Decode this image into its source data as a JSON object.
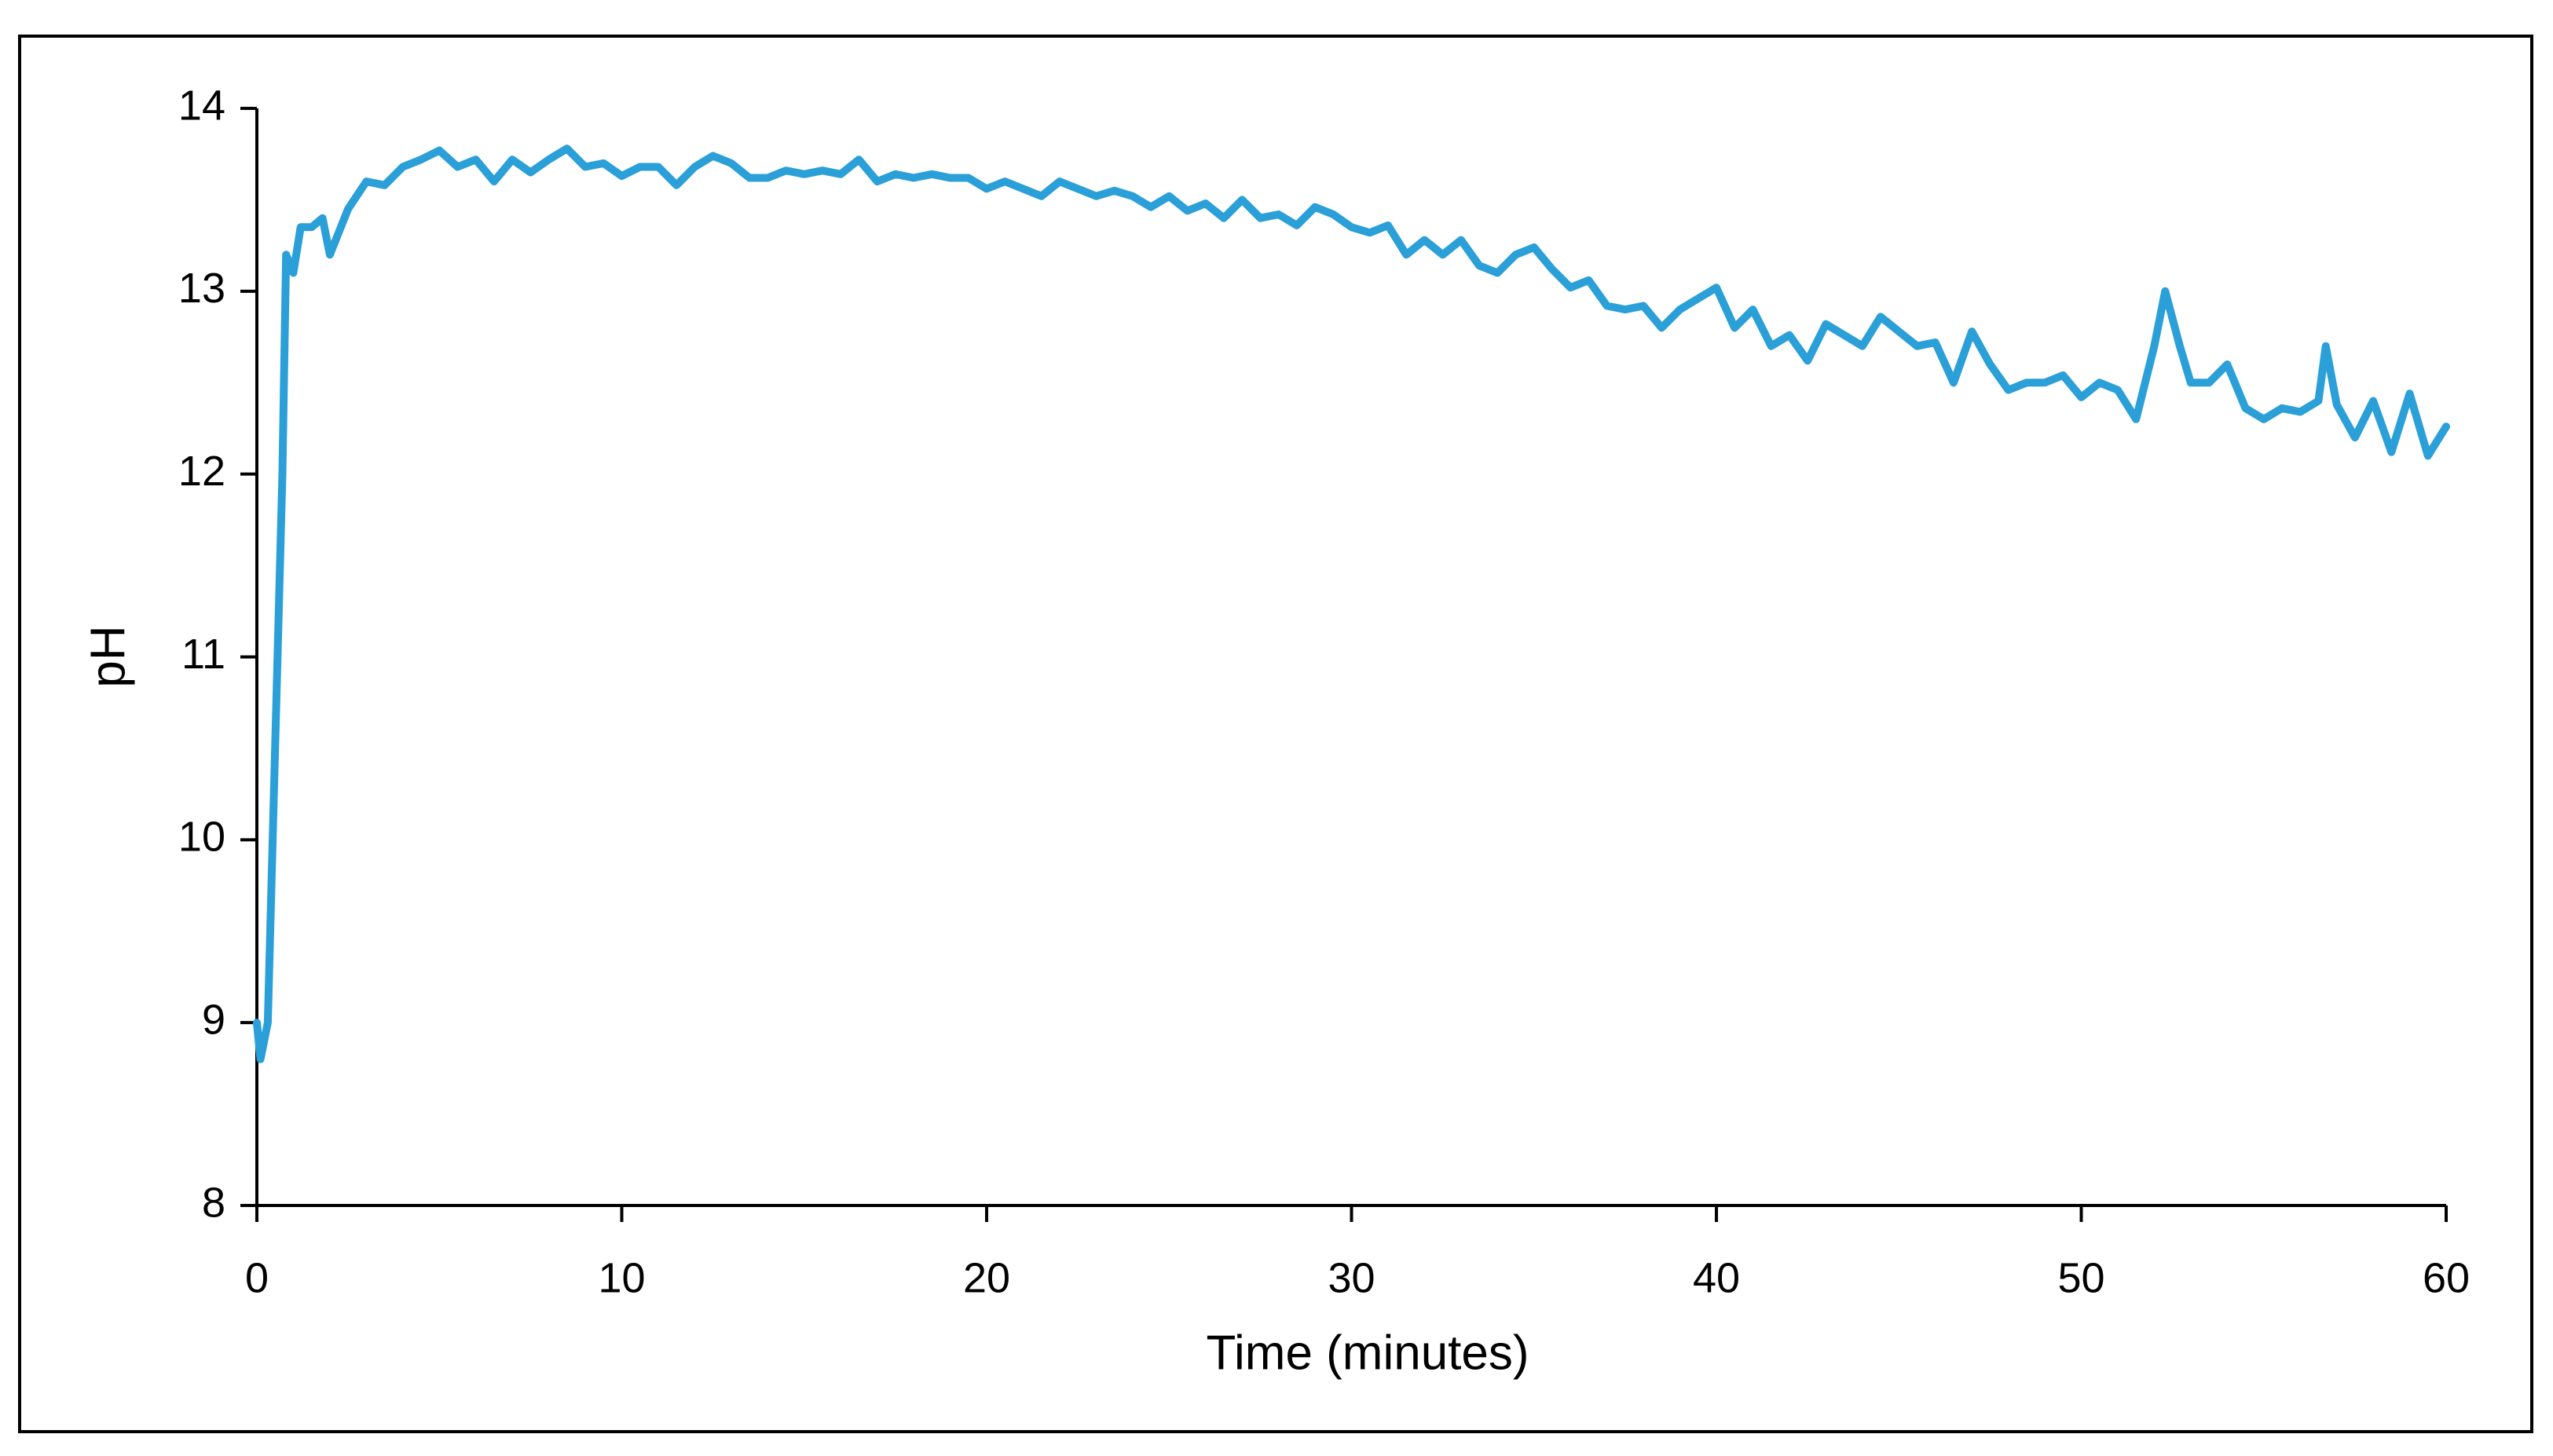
{
  "chart_data": {
    "type": "line",
    "xlabel": "Time (minutes)",
    "ylabel": "pH",
    "color": "#2a9fd8",
    "xlim": [
      0,
      60
    ],
    "xticks": [
      0,
      10,
      20,
      30,
      40,
      50,
      60
    ],
    "ylim": [
      8,
      14
    ],
    "yticks": [
      8,
      9,
      10,
      11,
      12,
      13,
      14
    ],
    "x": [
      0,
      0.1,
      0.3,
      0.5,
      0.7,
      0.8,
      1.0,
      1.2,
      1.5,
      1.8,
      2.0,
      2.5,
      3.0,
      3.5,
      4,
      4.5,
      5,
      5.5,
      6,
      6.5,
      7,
      7.5,
      8,
      8.5,
      9,
      9.5,
      10,
      10.5,
      11,
      11.5,
      12,
      12.5,
      13,
      13.5,
      14,
      14.5,
      15,
      15.5,
      16,
      16.5,
      17,
      17.5,
      18,
      18.5,
      19,
      19.5,
      20,
      20.5,
      21,
      21.5,
      22,
      22.5,
      23,
      23.5,
      24,
      24.5,
      25,
      25.5,
      26,
      26.5,
      27,
      27.5,
      28,
      28.5,
      29,
      29.5,
      30,
      30.5,
      31,
      31.5,
      32,
      32.5,
      33,
      33.5,
      34,
      34.5,
      35,
      35.5,
      36,
      36.5,
      37,
      37.5,
      38,
      38.5,
      39,
      39.5,
      40,
      40.5,
      41,
      41.5,
      42,
      42.5,
      43,
      43.5,
      44,
      44.5,
      45,
      45.5,
      46,
      46.5,
      47,
      47.5,
      48,
      48.5,
      49,
      49.5,
      50,
      50.5,
      51,
      51.5,
      52,
      52.3,
      52.7,
      53,
      53.5,
      54,
      54.5,
      55,
      55.5,
      56,
      56.5,
      56.7,
      57,
      57.5,
      58,
      58.5,
      59,
      59.5,
      60
    ],
    "values": [
      9.0,
      8.8,
      9.0,
      10.5,
      12.0,
      13.2,
      13.1,
      13.35,
      13.35,
      13.4,
      13.2,
      13.45,
      13.6,
      13.58,
      13.68,
      13.72,
      13.77,
      13.68,
      13.72,
      13.6,
      13.72,
      13.65,
      13.72,
      13.78,
      13.68,
      13.7,
      13.63,
      13.68,
      13.68,
      13.58,
      13.68,
      13.74,
      13.7,
      13.62,
      13.62,
      13.66,
      13.64,
      13.66,
      13.64,
      13.72,
      13.6,
      13.64,
      13.62,
      13.64,
      13.62,
      13.62,
      13.56,
      13.6,
      13.56,
      13.52,
      13.6,
      13.56,
      13.52,
      13.55,
      13.52,
      13.46,
      13.52,
      13.44,
      13.48,
      13.4,
      13.5,
      13.4,
      13.42,
      13.36,
      13.46,
      13.42,
      13.35,
      13.32,
      13.36,
      13.2,
      13.28,
      13.2,
      13.28,
      13.14,
      13.1,
      13.2,
      13.24,
      13.12,
      13.02,
      13.06,
      12.92,
      12.9,
      12.92,
      12.8,
      12.9,
      12.96,
      13.02,
      12.8,
      12.9,
      12.7,
      12.76,
      12.62,
      12.82,
      12.76,
      12.7,
      12.86,
      12.78,
      12.7,
      12.72,
      12.5,
      12.78,
      12.6,
      12.46,
      12.5,
      12.5,
      12.54,
      12.42,
      12.5,
      12.46,
      12.3,
      12.7,
      13.0,
      12.7,
      12.5,
      12.5,
      12.6,
      12.36,
      12.3,
      12.36,
      12.34,
      12.4,
      12.7,
      12.38,
      12.2,
      12.4,
      12.12,
      12.44,
      12.1,
      12.26
    ]
  }
}
